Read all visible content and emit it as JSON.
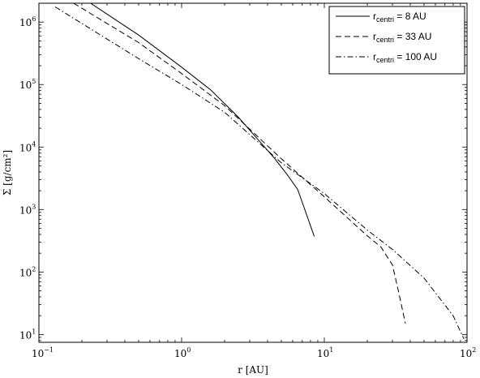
{
  "chart_data": {
    "type": "line",
    "xlabel": "r [AU]",
    "ylabel": "Σ [g/cm²]",
    "xscale": "log",
    "yscale": "log",
    "xlim": [
      0.1,
      100
    ],
    "ylim": [
      7.5,
      2000000
    ],
    "x_ticks": [
      {
        "base": "10",
        "exp": "−1"
      },
      {
        "base": "10",
        "exp": "0"
      },
      {
        "base": "10",
        "exp": "1"
      },
      {
        "base": "10",
        "exp": "2"
      }
    ],
    "y_ticks": [
      {
        "base": "10",
        "exp": "1"
      },
      {
        "base": "10",
        "exp": "2"
      },
      {
        "base": "10",
        "exp": "3"
      },
      {
        "base": "10",
        "exp": "4"
      },
      {
        "base": "10",
        "exp": "5"
      },
      {
        "base": "10",
        "exp": "6"
      }
    ],
    "legend": {
      "position": "top-right"
    },
    "series": [
      {
        "name_main": "r",
        "name_sub": "centri",
        "name_rest": " = 8 AU",
        "linestyle": "solid",
        "x": [
          0.23,
          0.5,
          1.0,
          1.6,
          2.5,
          3.5,
          4.5,
          5.5,
          6.5,
          7.3,
          8.5
        ],
        "y": [
          2000000,
          620000,
          190000,
          82000,
          30000,
          12500,
          6500,
          3600,
          2100,
          1000,
          370
        ]
      },
      {
        "name_main": "r",
        "name_sub": "centri",
        "name_rest": " = 33 AU",
        "linestyle": "dashed",
        "x": [
          0.175,
          0.5,
          1.0,
          2.0,
          5.0,
          10,
          20,
          25,
          30,
          33,
          37
        ],
        "y": [
          2000000,
          470000,
          150000,
          46000,
          6500,
          1600,
          380,
          250,
          130,
          50,
          15
        ]
      },
      {
        "name_main": "r",
        "name_sub": "centri",
        "name_rest": " = 100 AU",
        "linestyle": "dashdot",
        "x": [
          0.13,
          0.5,
          1.0,
          2.0,
          5.0,
          10,
          20,
          30,
          50,
          80,
          95
        ],
        "y": [
          1750000,
          260000,
          100000,
          36000,
          5600,
          1800,
          470,
          230,
          80,
          20,
          8.5
        ]
      }
    ]
  }
}
